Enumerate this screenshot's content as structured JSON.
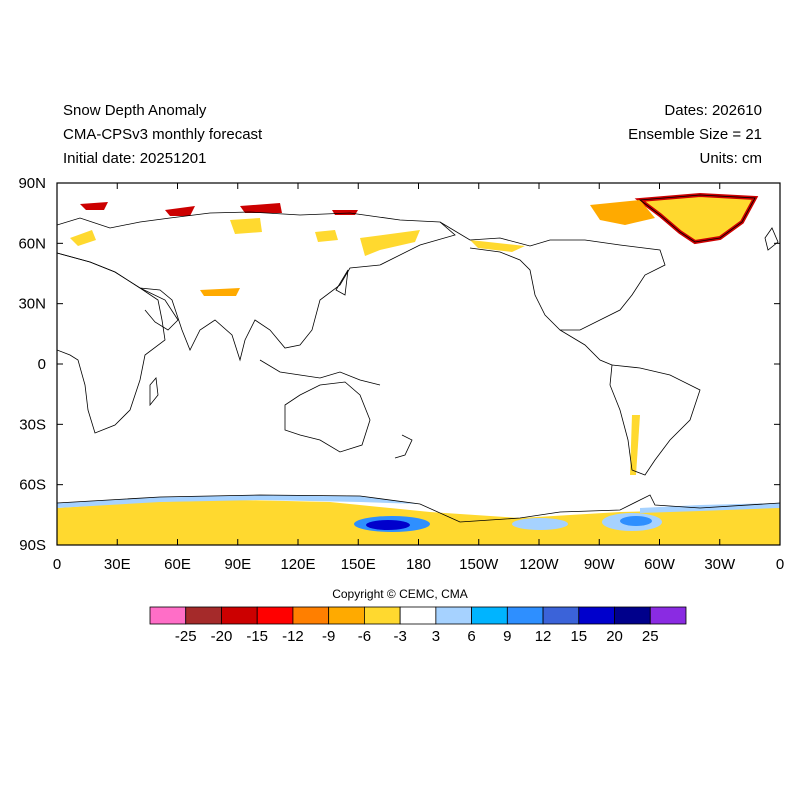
{
  "header": {
    "title": "Snow Depth Anomaly",
    "model": "CMA-CPSv3 monthly forecast",
    "initial_date": "Initial date: 20251201",
    "dates": "Dates: 202610",
    "ensemble": "Ensemble Size = 21",
    "units": "Units: cm"
  },
  "axes": {
    "y_ticks": [
      "90N",
      "60N",
      "30N",
      "0",
      "30S",
      "60S",
      "90S"
    ],
    "x_ticks": [
      "0",
      "30E",
      "60E",
      "90E",
      "120E",
      "150E",
      "180",
      "150W",
      "120W",
      "90W",
      "60W",
      "30W",
      "0"
    ]
  },
  "copyright": "Copyright © CEMC, CMA",
  "colorbar": {
    "colors": [
      "#ff6ec7",
      "#a52a2a",
      "#cc0000",
      "#ff0000",
      "#ff7f00",
      "#ffaa00",
      "#ffd92f",
      "#ffffff",
      "#a6d2ff",
      "#00b4ff",
      "#2e8fff",
      "#3b63d9",
      "#0000cc",
      "#00008b",
      "#8a2be2"
    ],
    "labels": [
      "-25",
      "-20",
      "-15",
      "-12",
      "-9",
      "-6",
      "-3",
      "3",
      "6",
      "9",
      "12",
      "15",
      "20",
      "25"
    ]
  },
  "map_colors": {
    "yellow": "#ffd92f",
    "orange": "#ffaa00",
    "red": "#cc0000",
    "light_blue": "#a6d2ff",
    "blue": "#2e8fff",
    "dark_blue": "#0000cc",
    "coast": "#000000"
  }
}
